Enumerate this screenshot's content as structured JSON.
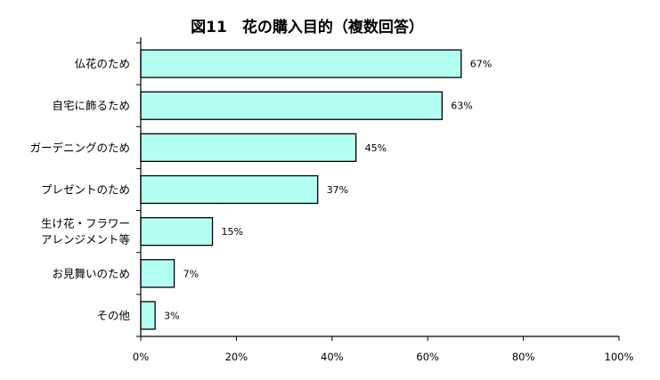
{
  "chart_data": {
    "type": "bar",
    "orientation": "horizontal",
    "title": "図11　花の購入目的（複数回答）",
    "categories": [
      [
        "仏花のため"
      ],
      [
        "自宅に飾るため"
      ],
      [
        "ガーデニングのため"
      ],
      [
        "プレゼントのため"
      ],
      [
        "生け花・フラワー",
        "アレンジメント等"
      ],
      [
        "お見舞いのため"
      ],
      [
        "その他"
      ]
    ],
    "values": [
      67,
      63,
      45,
      37,
      15,
      7,
      3
    ],
    "value_labels": [
      "67%",
      "63%",
      "45%",
      "37%",
      "15%",
      "7%",
      "3%"
    ],
    "xlim": [
      0,
      100
    ],
    "xticks": [
      0,
      20,
      40,
      60,
      80,
      100
    ],
    "xtick_labels": [
      "0%",
      "20%",
      "40%",
      "60%",
      "80%",
      "100%"
    ],
    "bar_color": "#b3fff2",
    "bar_edge_color": "#000000",
    "grid": false,
    "legend": false
  }
}
